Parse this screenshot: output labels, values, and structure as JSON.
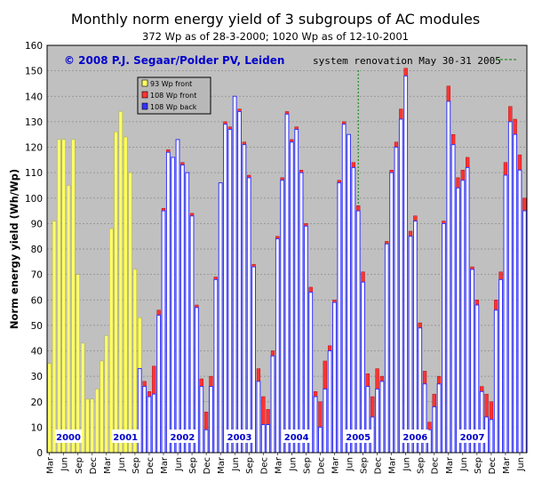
{
  "chart_data": {
    "type": "bar",
    "title": "Monthly norm energy yield of 3 subgroups of AC modules",
    "subtitle": "372 Wp as of 28-3-2000; 1020 Wp as of 12-10-2001",
    "copyright": "© 2008 P.J. Segaar/Polder PV, Leiden",
    "annotation": "system renovation May 30-31 2005",
    "ylabel": "Norm energy yield (Wh/Wp)",
    "xlabel": "",
    "ylim": [
      0,
      160
    ],
    "yticks": [
      0,
      10,
      20,
      30,
      40,
      50,
      60,
      70,
      80,
      90,
      100,
      110,
      120,
      130,
      140,
      150,
      160
    ],
    "grid": true,
    "legend_position": "top-left",
    "colors": {
      "plot_bg": "#c0c0c0",
      "front93": "#ffff66",
      "front108": "#ff3333",
      "back108": "#3333ff",
      "bar_edge": "#000080",
      "title_blue": "#0000cc",
      "annotation_green": "#008000",
      "year_label_bg": "#ffffff"
    },
    "x_tick_labels": [
      "Mar",
      "Jun",
      "Sep",
      "Dec",
      "Mar",
      "Jun",
      "Sep",
      "Dec",
      "Mar",
      "Jun",
      "Sep",
      "Dec",
      "Mar",
      "Jun",
      "Sep",
      "Dec",
      "Mar",
      "Jun",
      "Sep",
      "Dec",
      "Mar",
      "Jun",
      "Sep",
      "Dec",
      "Mar",
      "Jun",
      "Sep",
      "Dec",
      "Mar",
      "Jun",
      "Sep",
      "Dec",
      "Mar",
      "Jun"
    ],
    "year_labels": [
      {
        "year": "2000",
        "month_index": 4
      },
      {
        "year": "2001",
        "month_index": 16
      },
      {
        "year": "2002",
        "month_index": 28
      },
      {
        "year": "2003",
        "month_index": 40
      },
      {
        "year": "2004",
        "month_index": 52
      },
      {
        "year": "2005",
        "month_index": 65
      },
      {
        "year": "2006",
        "month_index": 77
      },
      {
        "year": "2007",
        "month_index": 89
      }
    ],
    "renovation_month_index": 65,
    "series": [
      {
        "name": "93 Wp front",
        "values": [
          [
            35,
            91,
            123,
            123,
            105,
            123,
            70,
            43,
            21,
            21,
            25,
            36,
            46,
            88,
            126,
            134,
            124,
            110,
            72,
            53
          ]
        ]
      },
      {
        "name": "108 Wp front",
        "start_index": 19,
        "values": [
          33,
          28,
          24,
          34,
          56,
          96,
          119,
          116,
          123,
          114,
          110,
          94,
          58,
          29,
          16,
          30,
          69,
          106,
          130,
          128,
          140,
          135,
          122,
          109,
          74,
          33,
          22,
          17,
          40,
          85,
          108,
          134,
          123,
          128,
          111,
          90,
          65,
          24,
          20,
          36,
          42,
          60,
          107,
          130,
          119,
          114,
          97,
          71,
          31,
          22,
          33,
          30,
          83,
          111,
          122,
          135,
          151,
          87,
          93,
          51,
          32,
          12,
          23,
          30,
          91,
          144,
          125,
          108,
          111,
          116,
          73,
          60,
          26,
          23,
          20,
          60,
          71,
          114,
          136,
          131,
          117,
          100
        ]
      },
      {
        "name": "108 Wp back",
        "start_index": 19,
        "values": [
          33,
          26,
          22,
          23,
          54,
          95,
          118,
          116,
          123,
          113,
          110,
          93,
          57,
          26,
          9,
          26,
          68,
          106,
          129,
          127,
          140,
          134,
          121,
          108,
          73,
          28,
          11,
          11,
          38,
          84,
          107,
          133,
          122,
          127,
          110,
          89,
          63,
          22,
          10,
          25,
          40,
          59,
          106,
          129,
          125,
          112,
          95,
          67,
          26,
          14,
          25,
          28,
          82,
          110,
          120,
          131,
          148,
          85,
          91,
          49,
          27,
          9,
          18,
          27,
          90,
          138,
          121,
          104,
          107,
          112,
          72,
          58,
          24,
          14,
          13,
          56,
          68,
          109,
          130,
          125,
          111,
          95
        ]
      }
    ]
  }
}
